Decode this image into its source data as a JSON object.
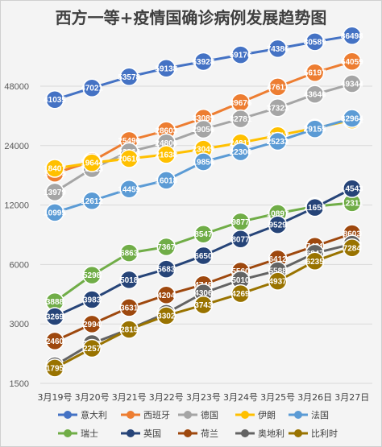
{
  "chart_data": {
    "type": "line",
    "title": "西方一等+疫情国确诊病例发展趋势图",
    "xlabel": "",
    "ylabel": "",
    "y_scale": "log",
    "ylim": [
      1500,
      96000
    ],
    "yticks": [
      1500,
      3000,
      6000,
      12000,
      24000,
      48000
    ],
    "grid": true,
    "legend_position": "bottom",
    "categories": [
      "3月19号",
      "3月20号",
      "3月21号",
      "3月22号",
      "3月23号",
      "3月24号",
      "3月25号",
      "3月26日",
      "3月27日"
    ],
    "series": [
      {
        "name": "意大利",
        "color": "#4472c4",
        "values": [
          41035,
          47021,
          53578,
          59138,
          63928,
          69176,
          74386,
          80589,
          86498
        ]
      },
      {
        "name": "西班牙",
        "color": "#ed7d31",
        "values": [
          17395,
          19980,
          25496,
          28603,
          33089,
          39676,
          47611,
          56197,
          64059
        ]
      },
      {
        "name": "德国",
        "color": "#a5a5a5",
        "values": [
          13979,
          18323,
          22364,
          24806,
          29056,
          32781,
          37323,
          43646,
          49344
        ]
      },
      {
        "name": "伊朗",
        "color": "#ffc000",
        "values": [
          18407,
          19644,
          20610,
          21638,
          23049,
          24811,
          27017,
          29406,
          32332
        ]
      },
      {
        "name": "法国",
        "color": "#5b9bd5",
        "values": [
          10995,
          12612,
          14459,
          16018,
          19856,
          22300,
          25233,
          29155,
          32964
        ]
      },
      {
        "name": "瑞士",
        "color": "#70ad47",
        "values": [
          3888,
          5298,
          6863,
          7367,
          8547,
          9877,
          10897,
          11811,
          12311
        ]
      },
      {
        "name": "英国",
        "color": "#264478",
        "values": [
          3269,
          3983,
          5018,
          5683,
          6650,
          8077,
          9529,
          11658,
          14543
        ]
      },
      {
        "name": "荷兰",
        "color": "#9e480e",
        "values": [
          2460,
          2994,
          3631,
          4204,
          4749,
          5560,
          6412,
          7431,
          8603
        ]
      },
      {
        "name": "奥地利",
        "color": "#636363",
        "values": [
          1845,
          2388,
          2822,
          3401,
          4306,
          5010,
          5588,
          6847,
          7610
        ]
      },
      {
        "name": "比利时",
        "color": "#997300",
        "values": [
          1795,
          2257,
          2815,
          3302,
          3743,
          4269,
          4937,
          6235,
          7284
        ]
      }
    ],
    "data_labels": {
      "意大利": [
        "41035",
        "47021",
        "53578",
        "59138",
        "63928",
        "69176",
        "74386",
        "80589",
        "86498"
      ],
      "西班牙": [
        "17395",
        "19980",
        "25496",
        "28603",
        "33089",
        "39676",
        "47611",
        "56197",
        "64059"
      ],
      "德国": [
        "13979",
        "18323",
        "22364",
        "24806",
        "29056",
        "32781",
        "37323",
        "43646",
        "49344"
      ],
      "伊朗": [
        "18407",
        "19644",
        "20610",
        "21638",
        "23049",
        "24811",
        "27017",
        "29406",
        "32332"
      ],
      "法国": [
        "10995",
        "12612",
        "14459",
        "16018",
        "19856",
        "22300",
        "25233",
        "29155",
        "32964"
      ],
      "瑞士": [
        "3888",
        "5298",
        "6863",
        "7367",
        "8547",
        "9877",
        "10897",
        "11811",
        "12311"
      ],
      "英国": [
        "3269",
        "3983",
        "5018",
        "5683",
        "6650",
        "8077",
        "9529",
        "11658",
        "14543"
      ],
      "荷兰": [
        "2460",
        "2994",
        "3631",
        "4204",
        "4749",
        "5560",
        "6412",
        "7431",
        "8603"
      ],
      "奥地利": [
        "1845",
        "2388",
        "2822",
        "3401",
        "4306",
        "5010",
        "5588",
        "6847",
        "7610"
      ],
      "比利时": [
        "1795",
        "2257",
        "2815",
        "3302",
        "3743",
        "4269",
        "4937",
        "6235",
        "7284"
      ]
    }
  }
}
